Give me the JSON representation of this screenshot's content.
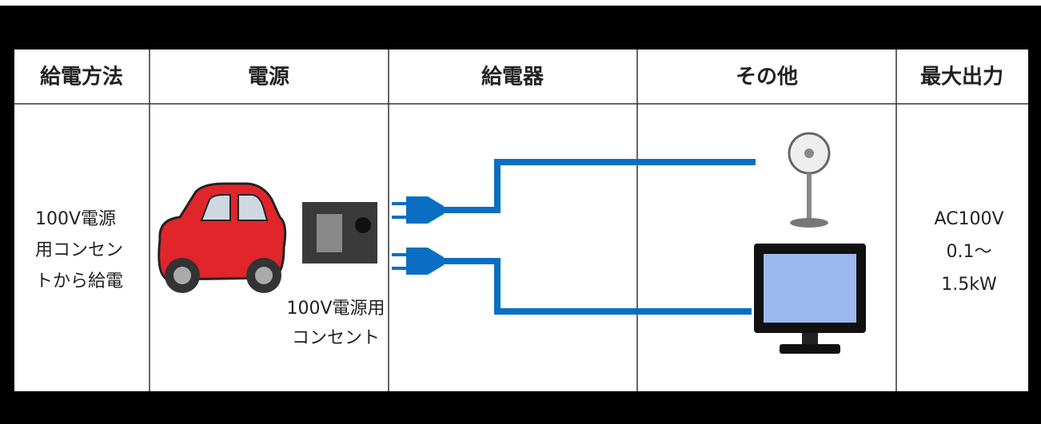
{
  "table": {
    "header": [
      "給電方法",
      "電源",
      "給電器",
      "その他",
      "最大出力"
    ],
    "rows": [
      {
        "method": [
          "100V電源",
          "用コンセン",
          "トから給電"
        ],
        "outlet_label": [
          "100V電源用",
          "コンセント"
        ],
        "max_output": [
          "AC100V",
          "0.1～",
          "1.5kW"
        ]
      }
    ]
  }
}
